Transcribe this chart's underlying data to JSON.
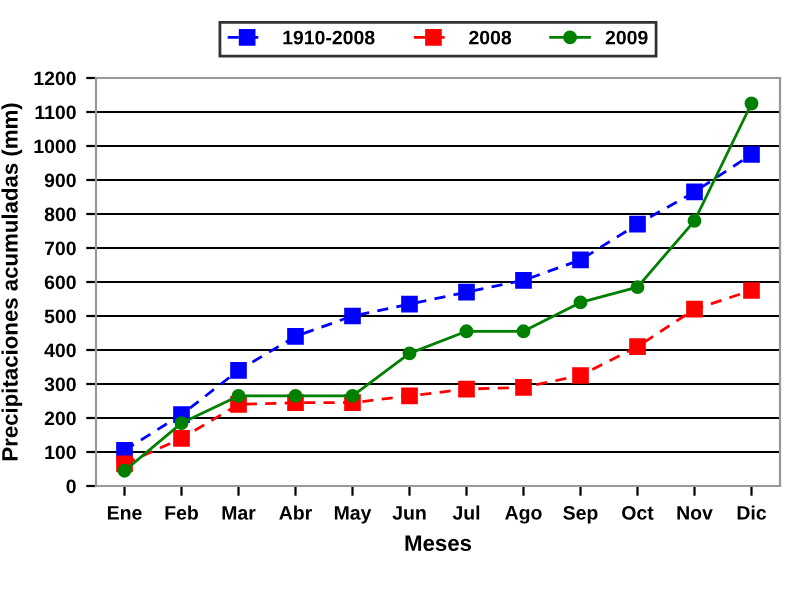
{
  "chart_data": {
    "type": "line",
    "xlabel": "Meses",
    "ylabel": "Precipitaciones acumuladas (mm)",
    "categories": [
      "Ene",
      "Feb",
      "Mar",
      "Abr",
      "May",
      "Jun",
      "Jul",
      "Ago",
      "Sep",
      "Oct",
      "Nov",
      "Dic"
    ],
    "series": [
      {
        "name": "1910-2008",
        "color": "#0000ff",
        "marker": "square",
        "line_style": "dashed",
        "values": [
          105,
          210,
          340,
          440,
          500,
          535,
          570,
          605,
          665,
          770,
          865,
          975
        ]
      },
      {
        "name": "2008",
        "color": "#ff0000",
        "marker": "square",
        "line_style": "dashed",
        "values": [
          65,
          140,
          240,
          245,
          245,
          265,
          285,
          290,
          325,
          410,
          520,
          575
        ]
      },
      {
        "name": "2009",
        "color": "#008000",
        "marker": "circle",
        "line_style": "solid",
        "values": [
          45,
          185,
          265,
          265,
          265,
          390,
          455,
          455,
          540,
          585,
          780,
          1125
        ]
      }
    ],
    "ylim": [
      0,
      1200
    ],
    "yticks": [
      0,
      100,
      200,
      300,
      400,
      500,
      600,
      700,
      800,
      900,
      1000,
      1100,
      1200
    ],
    "grid": "y",
    "legend": "top"
  }
}
